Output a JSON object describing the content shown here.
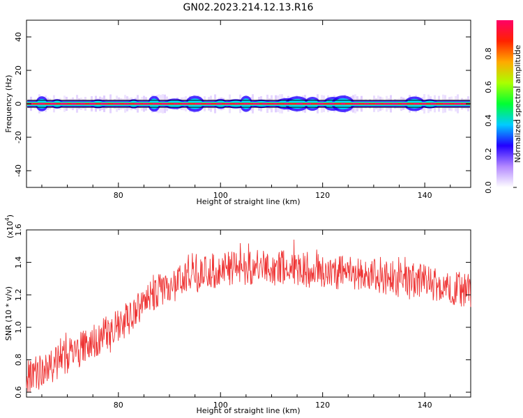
{
  "figure_title": "GN02.2023.214.12.13.R16",
  "chart_data": [
    {
      "type": "heatmap",
      "xlabel": "Height of straight line (km)",
      "ylabel": "Frequency (Hz)",
      "xlim": [
        62,
        149
      ],
      "ylim": [
        -50,
        50
      ],
      "x_ticks": [
        80,
        100,
        120,
        140
      ],
      "y_ticks": [
        -40,
        -20,
        0,
        20,
        40
      ],
      "colorbar": {
        "label": "Normalized spectral amplitude",
        "range": [
          0,
          1
        ],
        "ticks": [
          "0.0",
          "0.2",
          "0.4",
          "0.6",
          "0.8"
        ],
        "colors": [
          "#ffffff",
          "#b388ff",
          "#2200ff",
          "#00ccff",
          "#00ff33",
          "#aaff00",
          "#ffaa00",
          "#ff2200",
          "#ff0066"
        ]
      },
      "band": {
        "center_freq": 0,
        "half_width_hz": 1.5
      },
      "hotspots_km": [
        65,
        68,
        76,
        83,
        87,
        91,
        95,
        100,
        103,
        105,
        108,
        113,
        115,
        118,
        122,
        124,
        138,
        141
      ]
    },
    {
      "type": "line",
      "xlabel": "Height of straight line (km)",
      "ylabel": "SNR (10 * v/v)",
      "multiplier_label": "(x10",
      "multiplier_exp": "4",
      "xlim": [
        62,
        149
      ],
      "ylim": [
        0.57,
        1.6
      ],
      "x_ticks": [
        80,
        100,
        120,
        140
      ],
      "y_ticks": [
        "0.6",
        "0.8",
        "1.0",
        "1.2",
        "1.4",
        "1.6"
      ],
      "line_color": "#ee3333",
      "trend_km": [
        62,
        70,
        80,
        88,
        95,
        100,
        105,
        115,
        130,
        140,
        149
      ],
      "trend_snr": [
        0.68,
        0.82,
        1.0,
        1.22,
        1.32,
        1.36,
        1.37,
        1.36,
        1.32,
        1.28,
        1.22
      ]
    }
  ]
}
